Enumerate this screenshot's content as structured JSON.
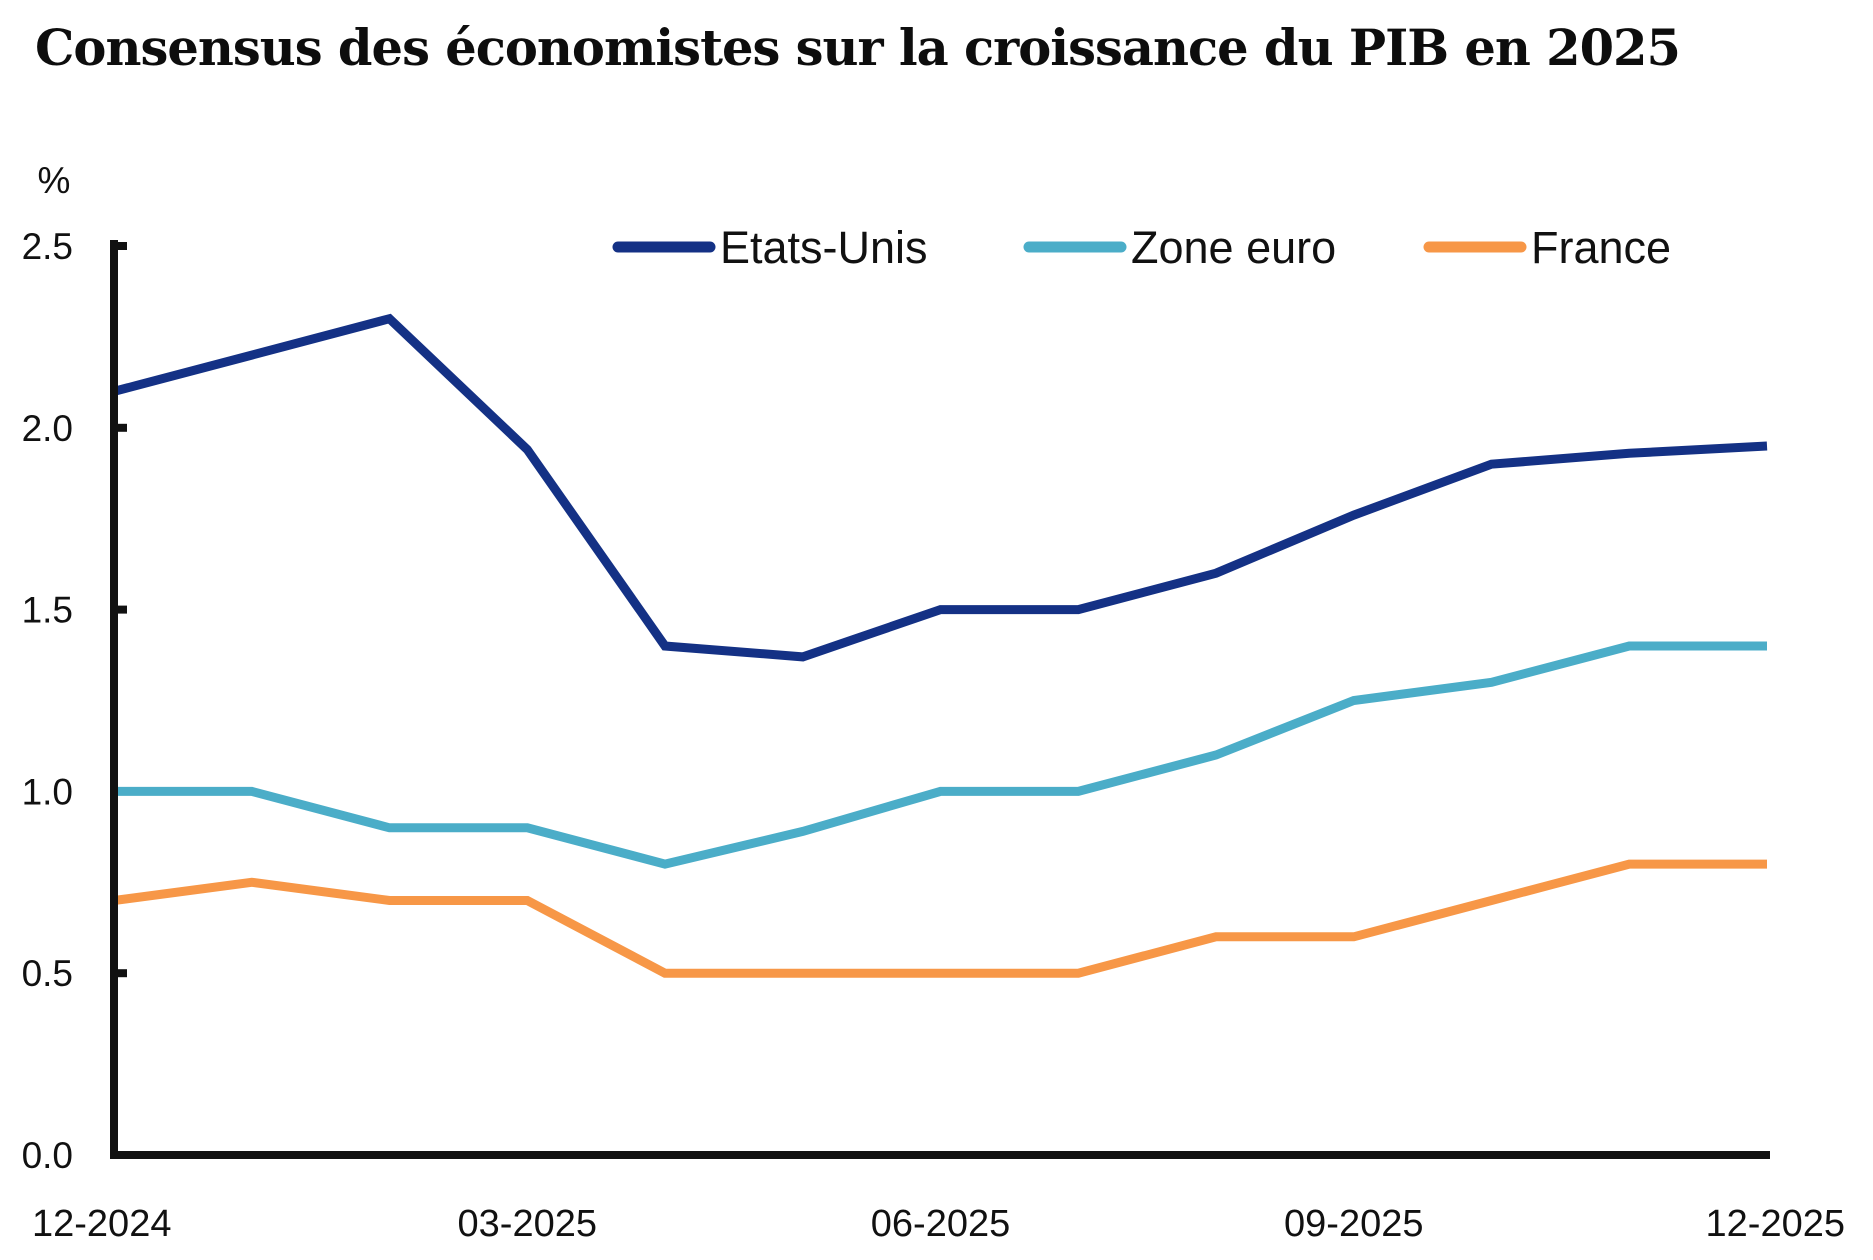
{
  "chart_data": {
    "type": "line",
    "title": "Consensus des économistes sur la croissance du PIB en 2025",
    "ylabel": "%",
    "xlabel": "",
    "ylim": [
      0,
      2.5
    ],
    "yticks": [
      0.0,
      0.5,
      1.0,
      1.5,
      2.0,
      2.5
    ],
    "ytick_labels": [
      "0.0",
      "0.5",
      "1.0",
      "1.5",
      "2.0",
      "2.5"
    ],
    "x": [
      "12-2024",
      "01-2025",
      "02-2025",
      "03-2025",
      "04-2025",
      "05-2025",
      "06-2025",
      "07-2025",
      "08-2025",
      "09-2025",
      "10-2025",
      "11-2025",
      "12-2025"
    ],
    "xtick_labels": [
      "12-2024",
      "03-2025",
      "06-2025",
      "09-2025",
      "12-2025"
    ],
    "xtick_indices": [
      0,
      3,
      6,
      9,
      12
    ],
    "grid": false,
    "legend_position": "top-right",
    "series": [
      {
        "name": "Etats-Unis",
        "color": "#143185",
        "values": [
          2.1,
          2.2,
          2.3,
          1.94,
          1.4,
          1.37,
          1.5,
          1.5,
          1.6,
          1.76,
          1.9,
          1.93,
          1.95
        ]
      },
      {
        "name": "Zone euro",
        "color": "#4BADC8",
        "values": [
          1.0,
          1.0,
          0.9,
          0.9,
          0.8,
          0.89,
          1.0,
          1.0,
          1.1,
          1.25,
          1.3,
          1.4,
          1.4
        ]
      },
      {
        "name": "France",
        "color": "#F79747",
        "values": [
          0.7,
          0.75,
          0.7,
          0.7,
          0.5,
          0.5,
          0.5,
          0.5,
          0.6,
          0.6,
          0.7,
          0.8,
          0.8
        ]
      }
    ]
  }
}
